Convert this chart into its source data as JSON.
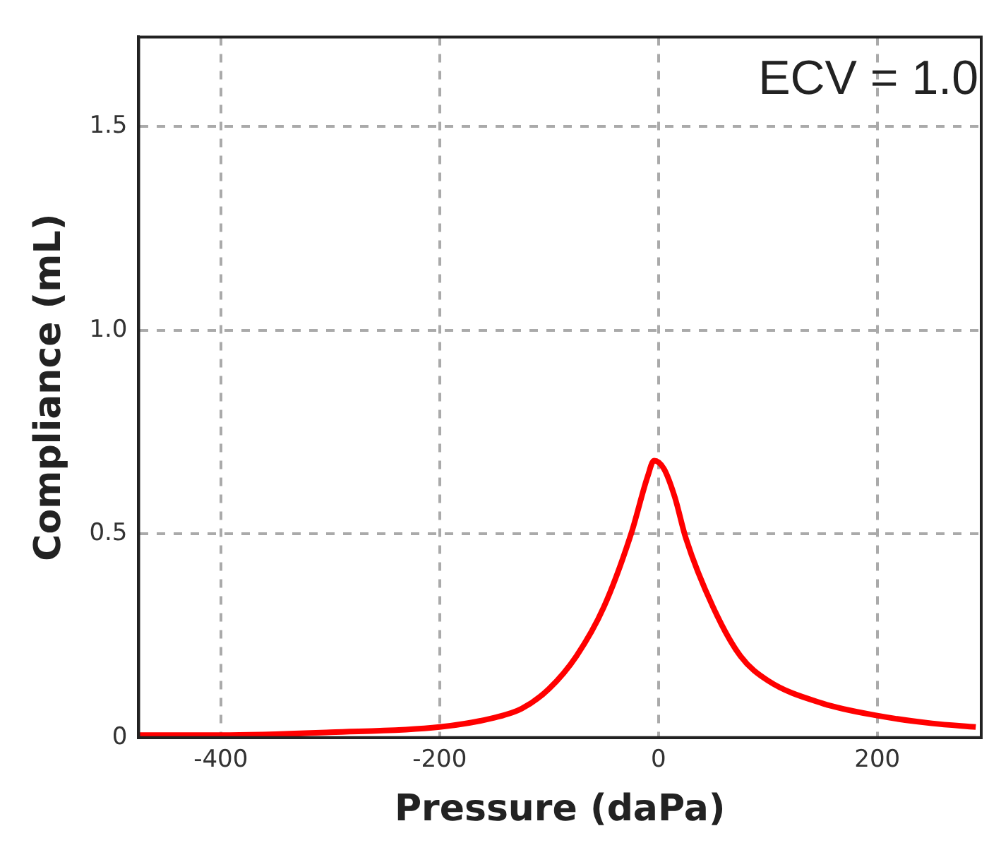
{
  "chart_data": {
    "type": "line",
    "xlabel": "Pressure (daPa)",
    "ylabel": "Compliance (mL)",
    "annotations": [
      "ECV = 1.0"
    ],
    "x": [
      -475,
      -400,
      -300,
      -200,
      -150,
      -125,
      -100,
      -75,
      -50,
      -25,
      -10,
      -4,
      5,
      15,
      25,
      50,
      75,
      100,
      150,
      200,
      250,
      290
    ],
    "series": [
      {
        "color": "#ff0000",
        "values": [
          0.006,
          0.006,
          0.013,
          0.026,
          0.049,
          0.071,
          0.12,
          0.2,
          0.32,
          0.5,
          0.64,
          0.68,
          0.66,
          0.59,
          0.49,
          0.32,
          0.2,
          0.14,
          0.084,
          0.054,
          0.035,
          0.026
        ]
      }
    ],
    "xlim": [
      -475,
      295
    ],
    "xticks": [
      -400,
      -200,
      0,
      200
    ],
    "ylim": [
      0,
      1.72
    ],
    "yticks": [
      0,
      {
        "value": 0.5,
        "label": "0.5"
      },
      {
        "value": 1,
        "label": "1.0"
      },
      {
        "value": 1.5,
        "label": "1.5"
      }
    ],
    "grid": true,
    "legend": false,
    "marker": "none",
    "line_style": "solid"
  }
}
